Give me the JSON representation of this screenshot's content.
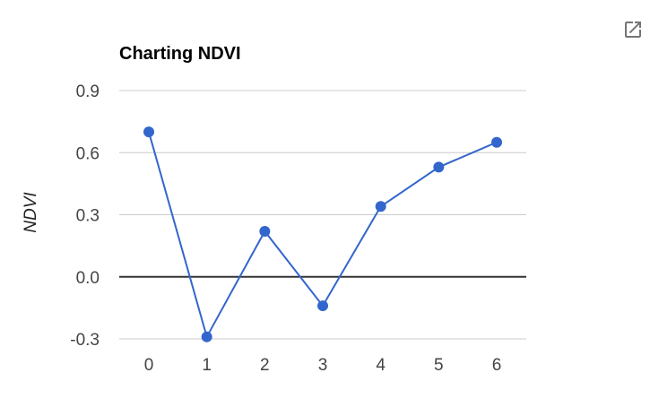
{
  "chart_data": {
    "type": "line",
    "title": "Charting NDVI",
    "xlabel": "",
    "ylabel": "NDVI",
    "x": [
      0,
      1,
      2,
      3,
      4,
      5,
      6
    ],
    "x_tick_labels": [
      "0",
      "1",
      "2",
      "3",
      "4",
      "5",
      "6"
    ],
    "series": [
      {
        "values": [
          0.7,
          -0.29,
          0.22,
          -0.14,
          0.34,
          0.53,
          0.65
        ],
        "color": "#3366cc"
      }
    ],
    "ylim": [
      -0.3,
      0.9
    ],
    "y_ticks": [
      -0.3,
      0.0,
      0.3,
      0.6,
      0.9
    ],
    "y_tick_labels": [
      "-0.3",
      "0.0",
      "0.3",
      "0.6",
      "0.9"
    ],
    "grid": true,
    "legend": "none",
    "gridline_color": "#cccccc",
    "zero_line_color": "#333333"
  },
  "toolbar": {
    "open_icon": "open-in-new-icon"
  }
}
